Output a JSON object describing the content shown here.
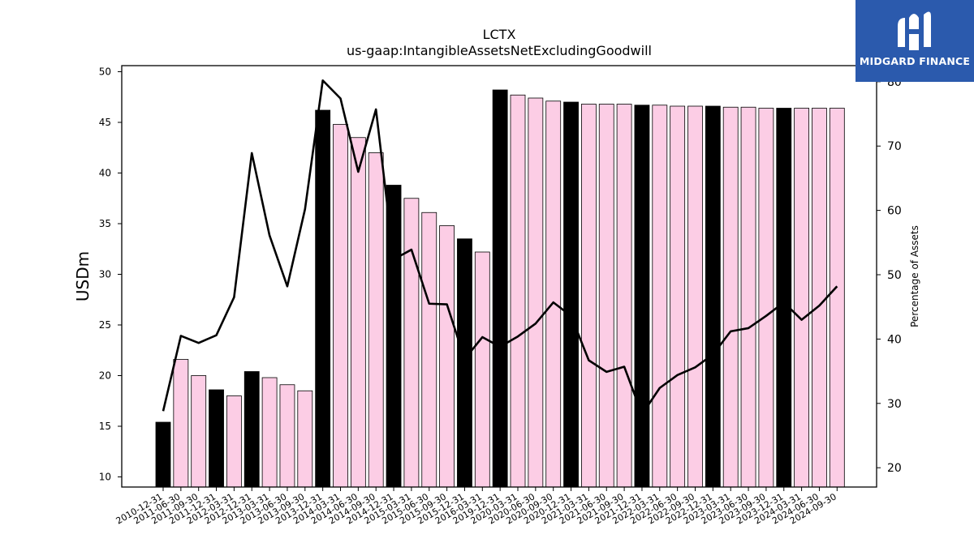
{
  "chart_data": {
    "type": "bar+line",
    "title": "LCTX",
    "subtitle": "us-gaap:IntangibleAssetsNetExcludingGoodwill",
    "ylabel_left": "USDm",
    "ylabel_right": "Percentage of Assets",
    "ylim_left": [
      9,
      50.6
    ],
    "ylim_right": [
      17,
      82.5
    ],
    "yticks_left": [
      10,
      15,
      20,
      25,
      30,
      35,
      40,
      45,
      50
    ],
    "yticks_right": [
      20,
      30,
      40,
      50,
      60,
      70,
      80
    ],
    "categories": [
      "2010-12-31",
      "2011-06-30",
      "2011-09-30",
      "2011-12-31",
      "2012-03-31",
      "2012-12-31",
      "2013-03-31",
      "2013-06-30",
      "2013-09-30",
      "2013-12-31",
      "2014-03-31",
      "2014-06-30",
      "2014-09-30",
      "2014-12-31",
      "2015-03-31",
      "2015-06-30",
      "2015-09-30",
      "2015-12-31",
      "2016-03-31",
      "2019-12-31",
      "2020-03-31",
      "2020-06-30",
      "2020-09-30",
      "2020-12-31",
      "2021-03-31",
      "2021-06-30",
      "2021-09-30",
      "2021-12-31",
      "2022-03-31",
      "2022-06-30",
      "2022-09-30",
      "2022-12-31",
      "2023-03-31",
      "2023-06-30",
      "2023-09-30",
      "2023-12-31",
      "2024-03-31",
      "2024-06-30",
      "2024-09-30"
    ],
    "series": [
      {
        "type": "bar",
        "axis": "left",
        "values": [
          15.4,
          21.6,
          20.0,
          18.6,
          18.0,
          20.4,
          19.8,
          19.1,
          18.5,
          46.2,
          44.8,
          43.5,
          42.0,
          38.8,
          37.5,
          36.1,
          34.8,
          33.5,
          32.2,
          48.2,
          47.7,
          47.4,
          47.1,
          47.0,
          46.8,
          46.8,
          46.8,
          46.7,
          46.7,
          46.6,
          46.6,
          46.6,
          46.5,
          46.5,
          46.4,
          46.4,
          46.4,
          46.4,
          46.4
        ],
        "colors": {
          "annual": "#000000",
          "quarterly": "#fccde5",
          "edge": "#000000"
        },
        "annual_flags": [
          true,
          false,
          false,
          true,
          false,
          true,
          false,
          false,
          false,
          true,
          false,
          false,
          false,
          true,
          false,
          false,
          false,
          true,
          false,
          true,
          false,
          false,
          false,
          true,
          false,
          false,
          false,
          true,
          false,
          false,
          false,
          true,
          false,
          false,
          false,
          true,
          false,
          false,
          false
        ]
      },
      {
        "type": "line",
        "axis": "right",
        "color": "#000000",
        "values": [
          28.8,
          40.5,
          39.4,
          40.6,
          46.5,
          68.9,
          56.1,
          48.2,
          60.2,
          80.2,
          77.4,
          66.0,
          75.7,
          52.4,
          53.9,
          45.5,
          45.4,
          36.9,
          40.3,
          38.8,
          40.4,
          42.4,
          45.7,
          43.6,
          36.7,
          34.9,
          35.7,
          28.3,
          32.4,
          34.4,
          35.6,
          37.6,
          41.2,
          41.7,
          43.6,
          45.7,
          43.0,
          45.2,
          48.2
        ]
      }
    ],
    "grid": false,
    "legend": "none"
  },
  "logo": {
    "text": "MIDGARD FINANCE",
    "icon": "midgard-logo-icon",
    "background": "#2b5aad"
  }
}
